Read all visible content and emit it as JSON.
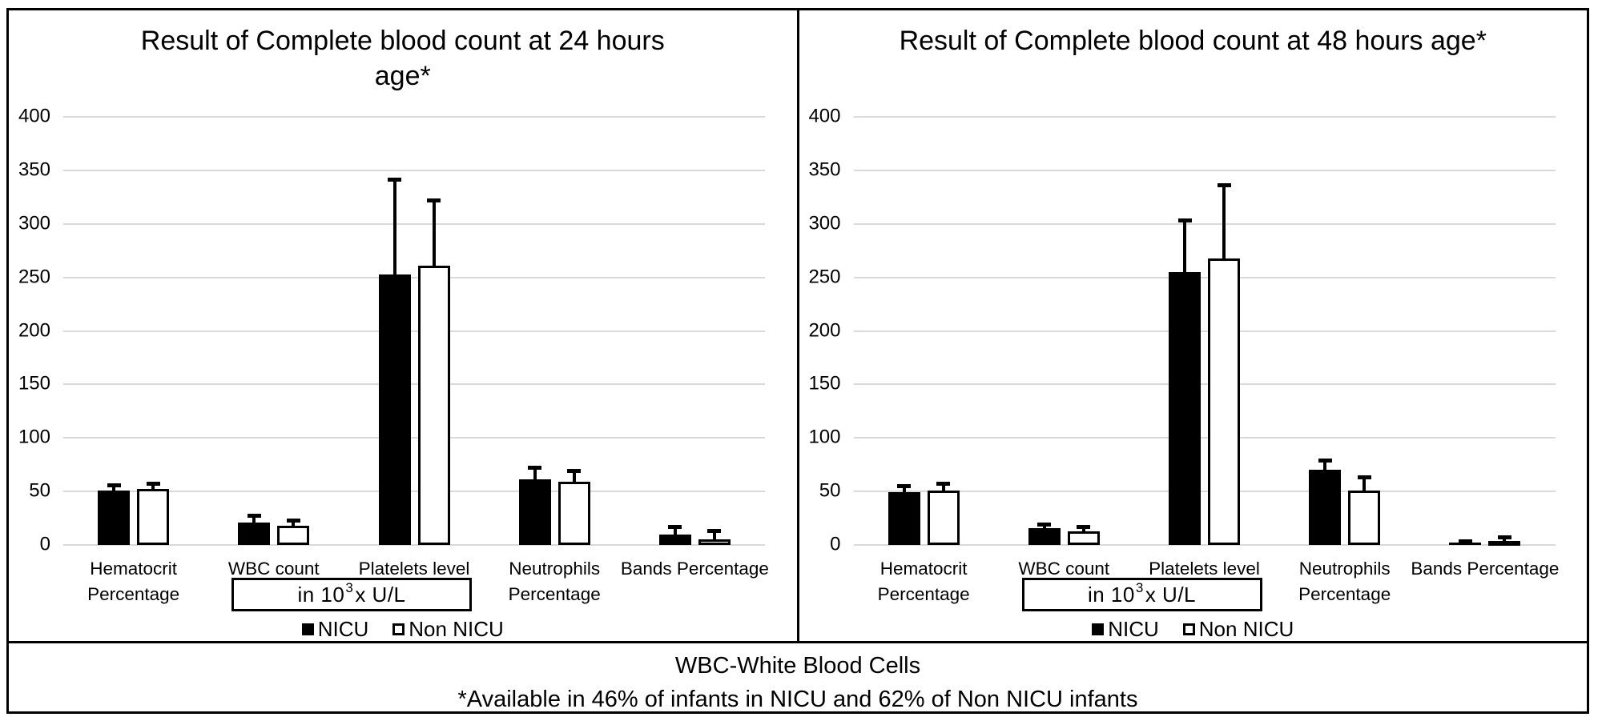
{
  "colors": {
    "bar_nicu": "#000000",
    "bar_non_nicu": "#ffffff",
    "bar_outline": "#000000",
    "gridline": "#d9d9d9",
    "border": "#000000",
    "background": "#ffffff"
  },
  "chart_data": [
    {
      "type": "bar",
      "title": "Result of Complete blood count at 24 hours age*",
      "categories": [
        "Hematocrit Percentage",
        "WBC count",
        "Platelets level",
        "Neutrophils Percentage",
        "Bands Percentage"
      ],
      "series": [
        {
          "name": "NICU",
          "fill": "black",
          "values": [
            51,
            21,
            253,
            61,
            10
          ],
          "errors_plus": [
            5,
            6,
            88,
            11,
            7
          ]
        },
        {
          "name": "Non NICU",
          "fill": "white",
          "values": [
            52,
            18,
            261,
            59,
            5
          ],
          "errors_plus": [
            5,
            5,
            61,
            10,
            8
          ]
        }
      ],
      "ylim": [
        0,
        400
      ],
      "yticks": [
        0,
        50,
        100,
        150,
        200,
        250,
        300,
        350,
        400
      ],
      "grid": true,
      "legend_position": "bottom",
      "unit_note": {
        "prefix": "in 10",
        "sup": "3",
        "suffix": "x  U/L"
      }
    },
    {
      "type": "bar",
      "title": "Result of Complete blood count at 48 hours age*",
      "categories": [
        "Hematocrit Percentage",
        "WBC count",
        "Platelets level",
        "Neutrophils Percentage",
        "Bands Percentage"
      ],
      "series": [
        {
          "name": "NICU",
          "fill": "black",
          "values": [
            49,
            16,
            255,
            70,
            2
          ],
          "errors_plus": [
            6,
            3,
            48,
            9,
            1
          ]
        },
        {
          "name": "Non NICU",
          "fill": "white",
          "values": [
            51,
            13,
            268,
            51,
            4
          ],
          "errors_plus": [
            6,
            4,
            68,
            12,
            3
          ]
        }
      ],
      "ylim": [
        0,
        400
      ],
      "yticks": [
        0,
        50,
        100,
        150,
        200,
        250,
        300,
        350,
        400
      ],
      "grid": true,
      "legend_position": "bottom",
      "unit_note": {
        "prefix": "in 10",
        "sup": "3",
        "suffix": "x  U/L"
      }
    }
  ],
  "footer": {
    "line1": "WBC-White Blood Cells",
    "line2": "*Available in 46% of infants in NICU and 62% of Non NICU infants"
  }
}
